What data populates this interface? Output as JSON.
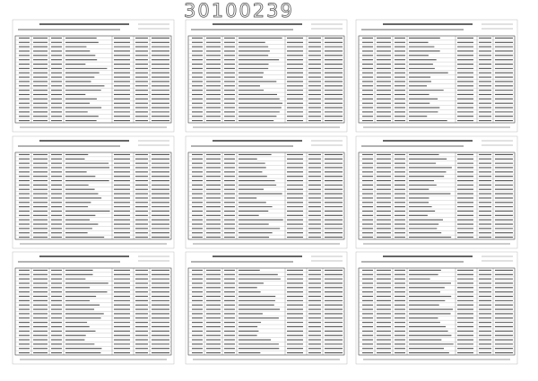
{
  "header": {
    "document_number": "30100239"
  }
}
